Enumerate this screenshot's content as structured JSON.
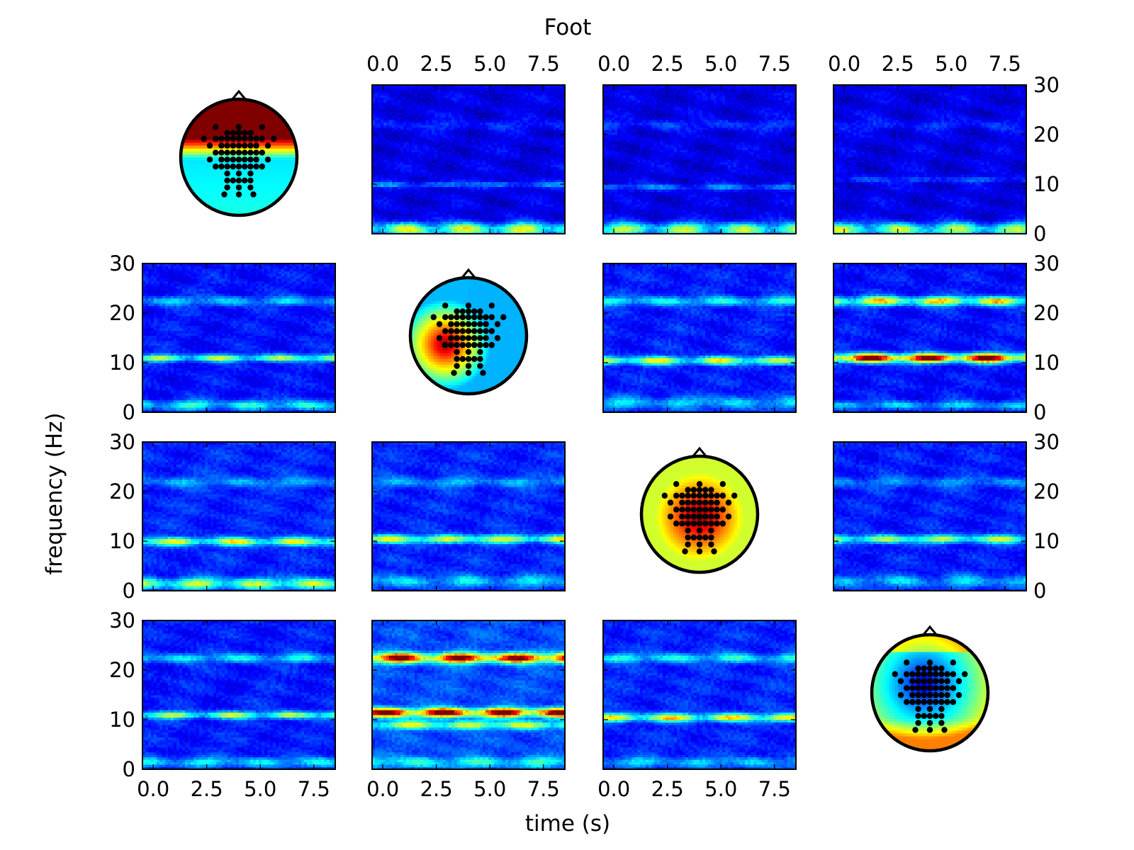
{
  "chart_data": {
    "type": "heatmap",
    "title": "Foot",
    "xlabel": "time (s)",
    "ylabel": "frequency (Hz)",
    "x_ticks": [
      "0.0",
      "2.5",
      "5.0",
      "7.5"
    ],
    "y_ticks": [
      "0",
      "10",
      "20",
      "30"
    ],
    "xlim": [
      -0.5,
      8.5
    ],
    "ylim": [
      0,
      30
    ],
    "colormap": "jet",
    "grid": false,
    "rows": 4,
    "cols": 4,
    "panels": [
      {
        "row": 0,
        "col": 0,
        "kind": "topomap",
        "pattern": "frontal-max"
      },
      {
        "row": 0,
        "col": 1,
        "kind": "spectrogram",
        "bands": [
          {
            "f": 1,
            "amp": 0.55,
            "w": 1.3
          },
          {
            "f": 10,
            "amp": 0.18,
            "w": 0.6
          },
          {
            "f": 22,
            "amp": 0.08,
            "w": 1.0
          }
        ],
        "background": 0.1
      },
      {
        "row": 0,
        "col": 2,
        "kind": "spectrogram",
        "bands": [
          {
            "f": 1,
            "amp": 0.5,
            "w": 1.3
          },
          {
            "f": 9.5,
            "amp": 0.18,
            "w": 0.6
          },
          {
            "f": 22,
            "amp": 0.1,
            "w": 1.0
          }
        ],
        "background": 0.1
      },
      {
        "row": 0,
        "col": 3,
        "kind": "spectrogram",
        "bands": [
          {
            "f": 1,
            "amp": 0.5,
            "w": 1.3
          },
          {
            "f": 11,
            "amp": 0.12,
            "w": 0.6
          },
          {
            "f": 22,
            "amp": 0.08,
            "w": 1.0
          }
        ],
        "background": 0.1
      },
      {
        "row": 1,
        "col": 0,
        "kind": "spectrogram",
        "bands": [
          {
            "f": 11,
            "amp": 0.45,
            "w": 0.7
          },
          {
            "f": 22.5,
            "amp": 0.22,
            "w": 0.9
          },
          {
            "f": 1.5,
            "amp": 0.3,
            "w": 1.0
          }
        ],
        "background": 0.14
      },
      {
        "row": 1,
        "col": 1,
        "kind": "topomap",
        "pattern": "left-central-max"
      },
      {
        "row": 1,
        "col": 2,
        "kind": "spectrogram",
        "bands": [
          {
            "f": 10.5,
            "amp": 0.5,
            "w": 0.8
          },
          {
            "f": 22.5,
            "amp": 0.28,
            "w": 0.9
          },
          {
            "f": 2,
            "amp": 0.22,
            "w": 1.2
          }
        ],
        "background": 0.15
      },
      {
        "row": 1,
        "col": 3,
        "kind": "spectrogram",
        "bands": [
          {
            "f": 11,
            "amp": 1.0,
            "w": 0.9
          },
          {
            "f": 22.5,
            "amp": 0.6,
            "w": 0.9
          },
          {
            "f": 1.5,
            "amp": 0.22,
            "w": 0.8
          }
        ],
        "background": 0.14
      },
      {
        "row": 2,
        "col": 0,
        "kind": "spectrogram",
        "bands": [
          {
            "f": 10,
            "amp": 0.5,
            "w": 0.8
          },
          {
            "f": 1.5,
            "amp": 0.45,
            "w": 1.1
          },
          {
            "f": 22,
            "amp": 0.16,
            "w": 1.0
          }
        ],
        "background": 0.16
      },
      {
        "row": 2,
        "col": 1,
        "kind": "spectrogram",
        "bands": [
          {
            "f": 10.5,
            "amp": 0.5,
            "w": 0.8
          },
          {
            "f": 2,
            "amp": 0.22,
            "w": 1.2
          },
          {
            "f": 22,
            "amp": 0.16,
            "w": 1.0
          }
        ],
        "background": 0.16
      },
      {
        "row": 2,
        "col": 2,
        "kind": "topomap",
        "pattern": "central-max"
      },
      {
        "row": 2,
        "col": 3,
        "kind": "spectrogram",
        "bands": [
          {
            "f": 10.5,
            "amp": 0.45,
            "w": 0.8
          },
          {
            "f": 2,
            "amp": 0.2,
            "w": 1.2
          },
          {
            "f": 22,
            "amp": 0.14,
            "w": 1.0
          }
        ],
        "background": 0.15
      },
      {
        "row": 3,
        "col": 0,
        "kind": "spectrogram",
        "bands": [
          {
            "f": 11,
            "amp": 0.45,
            "w": 0.7
          },
          {
            "f": 22.5,
            "amp": 0.26,
            "w": 0.9
          },
          {
            "f": 1.5,
            "amp": 0.25,
            "w": 1.0
          }
        ],
        "background": 0.15
      },
      {
        "row": 3,
        "col": 1,
        "kind": "spectrogram",
        "bands": [
          {
            "f": 11.5,
            "amp": 0.95,
            "w": 0.9
          },
          {
            "f": 22.5,
            "amp": 0.9,
            "w": 1.0
          },
          {
            "f": 9,
            "amp": 0.45,
            "w": 0.8
          },
          {
            "f": 1.5,
            "amp": 0.25,
            "w": 1.0
          }
        ],
        "background": 0.2
      },
      {
        "row": 3,
        "col": 2,
        "kind": "spectrogram",
        "bands": [
          {
            "f": 10.5,
            "amp": 0.55,
            "w": 0.8
          },
          {
            "f": 22.5,
            "amp": 0.28,
            "w": 0.9
          },
          {
            "f": 1.5,
            "amp": 0.2,
            "w": 1.0
          }
        ],
        "background": 0.16
      },
      {
        "row": 3,
        "col": 3,
        "kind": "topomap",
        "pattern": "central-min"
      }
    ]
  }
}
